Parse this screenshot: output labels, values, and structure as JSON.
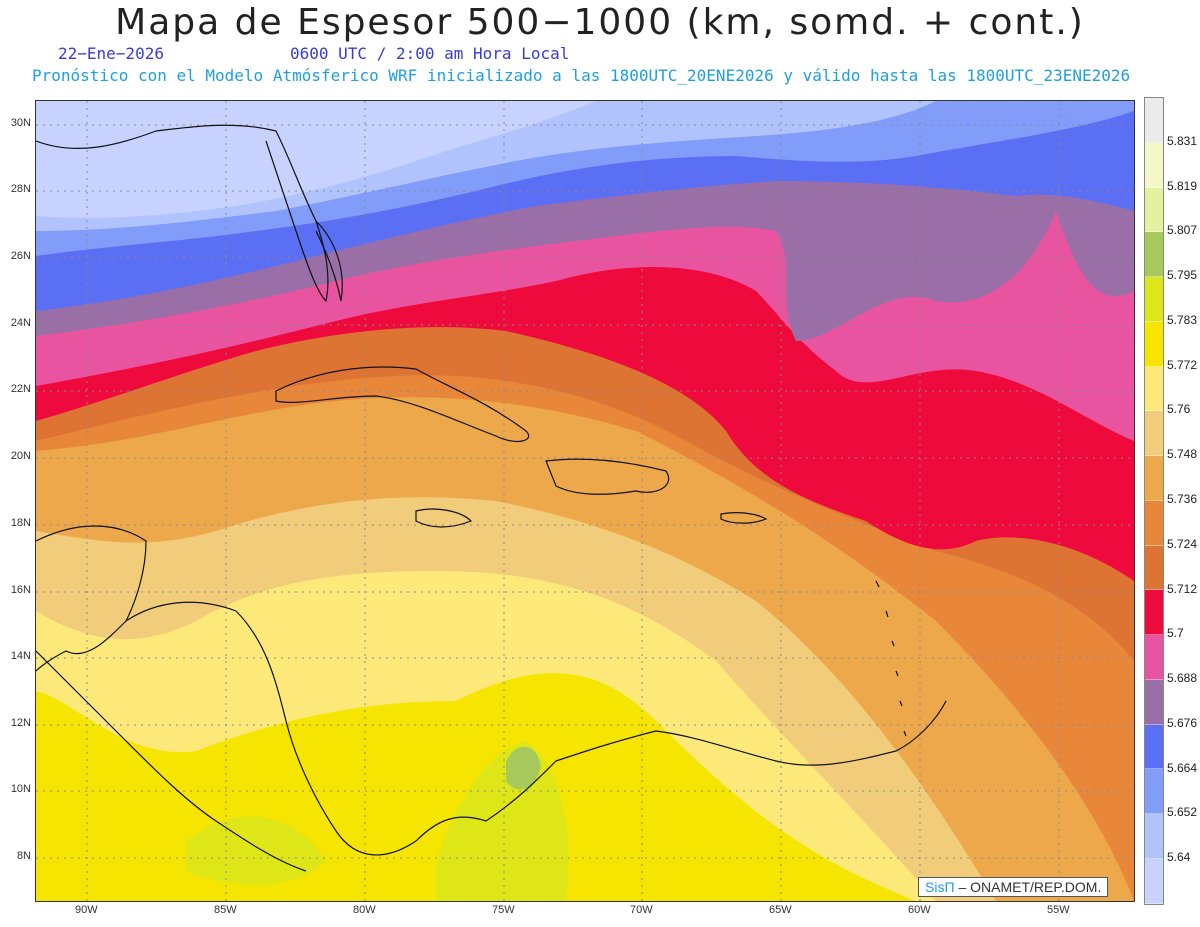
{
  "header": {
    "title": "Mapa de Espesor 500−1000 (km, somd. + cont.)",
    "date": "22−Ene−2026",
    "time": "0600 UTC / 2:00 am Hora Local",
    "model_line": "Pronóstico con el Modelo Atmósferico WRF inicializado a las 1800UTC_20ENE2026 y válido hasta las  1800UTC_23ENE2026"
  },
  "map": {
    "lat_labels": [
      "30N",
      "28N",
      "26N",
      "24N",
      "22N",
      "20N",
      "18N",
      "16N",
      "14N",
      "12N",
      "10N",
      "8N"
    ],
    "lon_labels": [
      "90W",
      "85W",
      "80W",
      "75W",
      "70W",
      "65W",
      "60W",
      "55W"
    ],
    "colorbar_labels": [
      "5.831",
      "5.819",
      "5.807",
      "5.795",
      "5.783",
      "5.772",
      "5.76",
      "5.748",
      "5.736",
      "5.724",
      "5.712",
      "5.7",
      "5.688",
      "5.676",
      "5.664",
      "5.652",
      "5.64"
    ],
    "colorbar_colors": [
      "#ebebeb",
      "#f4f7c8",
      "#e2f2a0",
      "#a7c95c",
      "#dde51b",
      "#f6e500",
      "#fde97a",
      "#f1cc7b",
      "#eca84a",
      "#e8873a",
      "#dd7434",
      "#ee0a3c",
      "#e954a0",
      "#9a6fa7",
      "#5b6ff4",
      "#829cf9",
      "#b1c3fd",
      "#c7d3fe"
    ]
  },
  "credit": {
    "brand": "SisΠ",
    "text": "– ONAMET/REP.DOM."
  }
}
